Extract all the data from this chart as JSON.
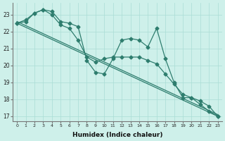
{
  "line_wavy": {
    "x": [
      0,
      1,
      2,
      3,
      4,
      5,
      6,
      7,
      8,
      9,
      10,
      11,
      12,
      13,
      14,
      15,
      16,
      17,
      18,
      19,
      20,
      21,
      22,
      23
    ],
    "y": [
      22.5,
      22.7,
      23.1,
      23.3,
      23.2,
      22.6,
      22.5,
      22.3,
      20.3,
      19.6,
      19.5,
      20.4,
      21.5,
      21.6,
      21.5,
      21.1,
      22.2,
      20.4,
      19.0,
      18.1,
      18.1,
      17.7,
      17.3,
      17.0
    ]
  },
  "line_straight1": {
    "x": [
      0,
      3,
      23
    ],
    "y": [
      22.5,
      23.3,
      17.0
    ]
  },
  "line_straight2": {
    "x": [
      0,
      3,
      23
    ],
    "y": [
      22.5,
      23.3,
      17.0
    ]
  },
  "line_medium": {
    "x": [
      0,
      1,
      2,
      3,
      4,
      5,
      6,
      7,
      8,
      9,
      10,
      11,
      12,
      13,
      14,
      15,
      16,
      17,
      18,
      19,
      20,
      21,
      22,
      23
    ],
    "y": [
      22.5,
      22.6,
      23.1,
      23.3,
      23.0,
      22.4,
      22.2,
      21.5,
      20.5,
      20.2,
      20.4,
      20.5,
      20.5,
      20.5,
      20.5,
      20.3,
      20.1,
      19.5,
      18.9,
      18.3,
      18.1,
      17.9,
      17.6,
      17.0
    ]
  },
  "color": "#2e7d6e",
  "bg_color": "#cef0ea",
  "grid_color": "#aaddd5",
  "xlabel": "Humidex (Indice chaleur)",
  "ylim": [
    16.7,
    23.7
  ],
  "xlim": [
    -0.5,
    23.5
  ],
  "yticks": [
    17,
    18,
    19,
    20,
    21,
    22,
    23
  ],
  "xticks": [
    0,
    1,
    2,
    3,
    4,
    5,
    6,
    7,
    8,
    9,
    10,
    11,
    12,
    13,
    14,
    15,
    16,
    17,
    18,
    19,
    20,
    21,
    22,
    23
  ],
  "marker": "D",
  "markersize": 2.5,
  "linewidth": 0.9
}
